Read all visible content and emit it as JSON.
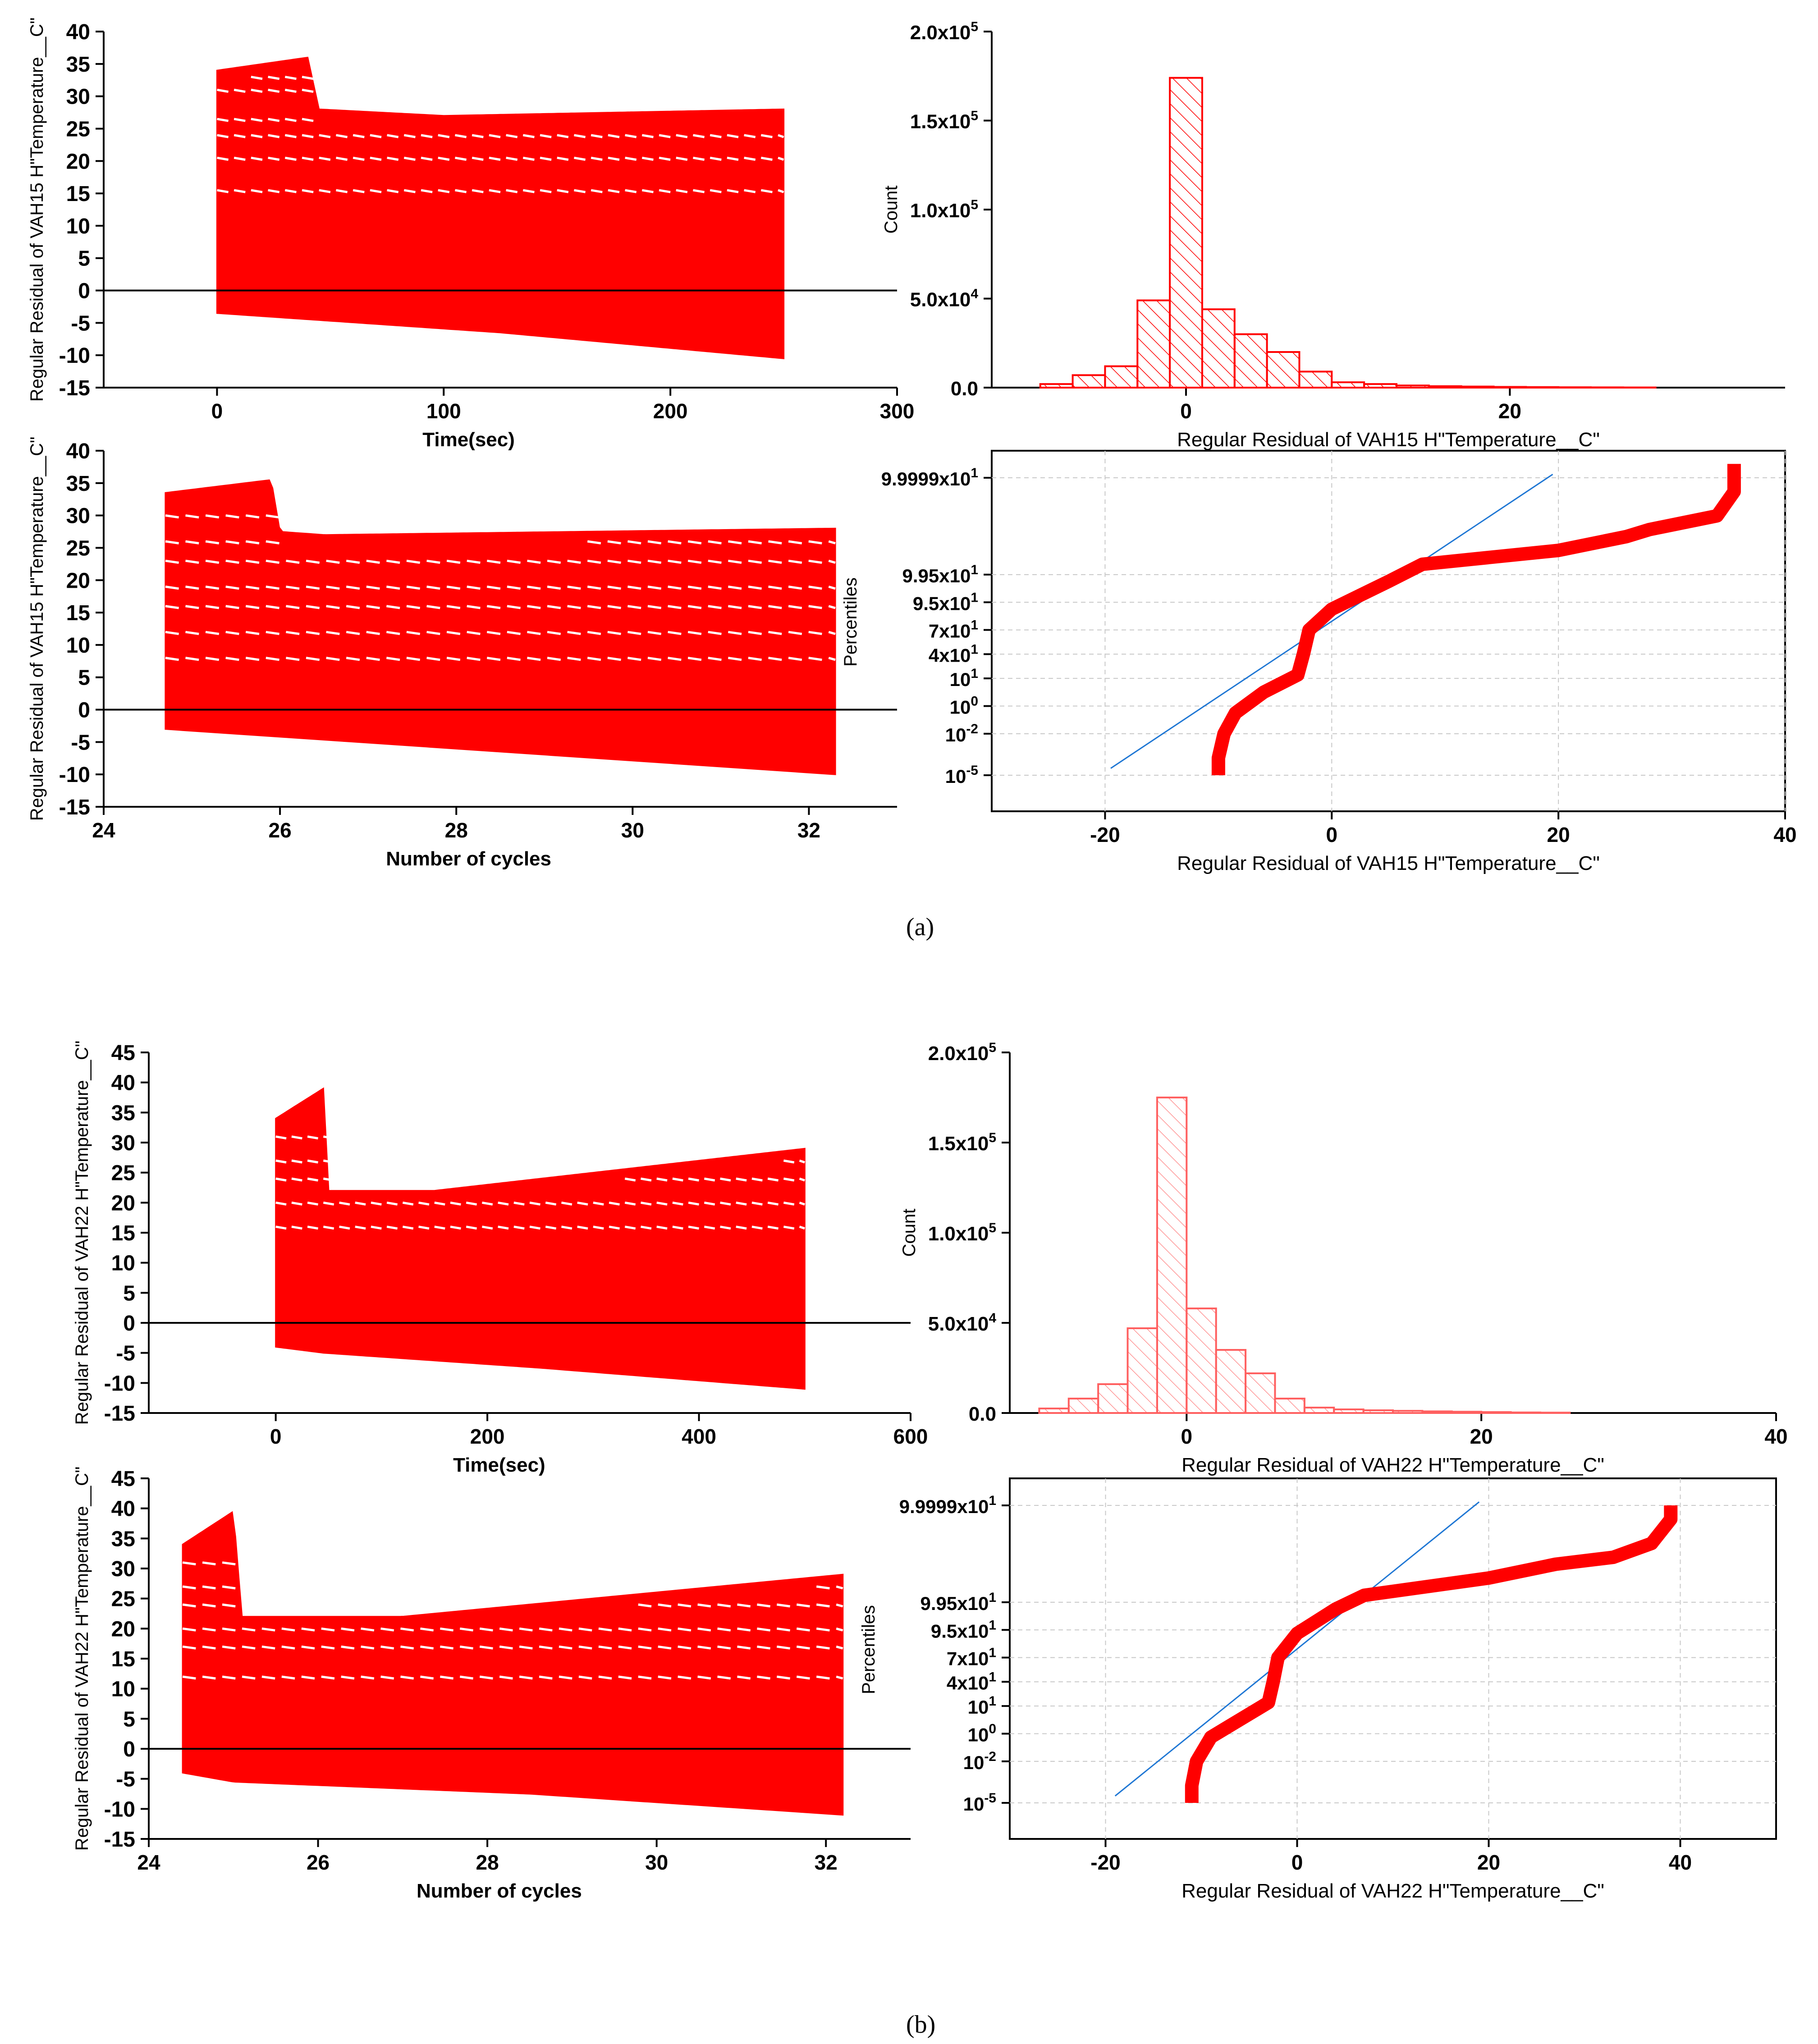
{
  "figure": {
    "caption_a": "(a)",
    "caption_b": "(b)"
  },
  "colors": {
    "red": "#ff0000",
    "fit_line": "#1f77d4",
    "grid": "#c8c8c8",
    "axis": "#000000"
  },
  "chart_data": [
    {
      "id": "a_time",
      "type": "area",
      "ylabel": "Regular Residual of VAH15 H\"Temperature__C\"",
      "xlabel": "Time(sec)",
      "xlim": [
        -50,
        300
      ],
      "ylim": [
        -15,
        40
      ],
      "xticks": [
        0,
        100,
        200,
        300
      ],
      "yticks": [
        -15,
        -10,
        -5,
        0,
        5,
        10,
        15,
        20,
        25,
        30,
        35,
        40
      ],
      "reference_y": 0,
      "x_range": [
        0,
        250
      ],
      "upper": [
        [
          0,
          34
        ],
        [
          40,
          36
        ],
        [
          45,
          28
        ],
        [
          100,
          27
        ],
        [
          250,
          28
        ]
      ],
      "lower": [
        [
          0,
          -3.5
        ],
        [
          125,
          -6.5
        ],
        [
          250,
          -10.5
        ]
      ],
      "bands": [
        33,
        31,
        26.5,
        24,
        20.5,
        15.5
      ]
    },
    {
      "id": "a_cycles",
      "type": "area",
      "ylabel": "Regular Residual of VAH15 H\"Temperature__C\"",
      "xlabel": "Number of cycles",
      "xlim": [
        24,
        33
      ],
      "ylim": [
        -15,
        40
      ],
      "xticks": [
        24,
        26,
        28,
        30,
        32
      ],
      "yticks": [
        -15,
        -10,
        -5,
        0,
        5,
        10,
        15,
        20,
        25,
        30,
        35,
        40
      ],
      "reference_y": 0,
      "x_range": [
        24.7,
        32.3
      ],
      "upper": [
        [
          24.7,
          33.5
        ],
        [
          25.9,
          35.5
        ],
        [
          26.0,
          27.5
        ],
        [
          26.5,
          27
        ],
        [
          32.3,
          28
        ]
      ],
      "lower": [
        [
          24.7,
          -3
        ],
        [
          28.5,
          -6.5
        ],
        [
          32.3,
          -10
        ]
      ],
      "bands": [
        30,
        26,
        23,
        19,
        16,
        12,
        8
      ]
    },
    {
      "id": "a_hist",
      "type": "bar",
      "xlabel": "Regular Residual of VAH15 H\"Temperature__C\"",
      "ylabel": "Count",
      "xlim": [
        -12,
        37
      ],
      "ylim": [
        0,
        200000
      ],
      "xticks": [
        0,
        20
      ],
      "yticks": [
        0,
        50000,
        100000,
        150000,
        200000
      ],
      "ytick_labels": [
        "0.0",
        "5.0x10^4",
        "1.0x10^5",
        "1.5x10^5",
        "2.0x10^5"
      ],
      "bin_width": 2,
      "bin_starts": [
        -9,
        -7,
        -5,
        -3,
        -1,
        1,
        3,
        5,
        7,
        9,
        11,
        13,
        15,
        17,
        19,
        21,
        23,
        25,
        27
      ],
      "values": [
        2000,
        7000,
        12000,
        49000,
        174000,
        44000,
        30000,
        20000,
        9000,
        3000,
        2000,
        1200,
        800,
        600,
        400,
        300,
        200,
        150,
        100
      ]
    },
    {
      "id": "a_prob",
      "type": "scatter",
      "xlabel": "Regular Residual of VAH15 H\"Temperature__C\"",
      "ylabel": "Percentiles",
      "xlim": [
        -30,
        40
      ],
      "xticks": [
        -20,
        0,
        20,
        40
      ],
      "ytick_labels": [
        "10^-5",
        "10^-2",
        "10^0",
        "10^1",
        "4x10^1",
        "7x10^1",
        "9.5x10^1",
        "9.95x10^1",
        "9.9999x10^1"
      ],
      "fit_line": [
        [
          -19.5,
          0.2
        ],
        [
          19.5,
          8.7
        ]
      ],
      "points": [
        [
          -10,
          0.0
        ],
        [
          -10,
          0.5
        ],
        [
          -9.5,
          1.2
        ],
        [
          -8.5,
          1.8
        ],
        [
          -6,
          2.4
        ],
        [
          -3,
          2.9
        ],
        [
          -2.5,
          3.5
        ],
        [
          -2,
          4.2
        ],
        [
          0,
          4.8
        ],
        [
          5,
          5.6
        ],
        [
          8,
          6.1
        ],
        [
          20,
          6.5
        ],
        [
          26,
          6.9
        ],
        [
          28,
          7.1
        ],
        [
          34,
          7.5
        ],
        [
          35.5,
          8.2
        ],
        [
          35.5,
          9.0
        ]
      ]
    },
    {
      "id": "b_time",
      "type": "area",
      "ylabel": "Regular Residual of VAH22 H\"Temperature__C\"",
      "xlabel": "Time(sec)",
      "xlim": [
        -120,
        600
      ],
      "ylim": [
        -15,
        45
      ],
      "xticks": [
        0,
        200,
        400,
        600
      ],
      "yticks": [
        -15,
        -10,
        -5,
        0,
        5,
        10,
        15,
        20,
        25,
        30,
        35,
        40,
        45
      ],
      "reference_y": 0,
      "x_range": [
        0,
        500
      ],
      "upper": [
        [
          0,
          34
        ],
        [
          45,
          39
        ],
        [
          50,
          22
        ],
        [
          150,
          22
        ],
        [
          500,
          29
        ]
      ],
      "lower": [
        [
          0,
          -4
        ],
        [
          45,
          -5
        ],
        [
          250,
          -7.5
        ],
        [
          500,
          -11
        ]
      ],
      "bands": [
        31,
        27,
        24,
        20,
        16
      ]
    },
    {
      "id": "b_cycles",
      "type": "area",
      "ylabel": "Regular Residual of VAH22 H\"Temperature__C\"",
      "xlabel": "Number of cycles",
      "xlim": [
        24,
        33
      ],
      "ylim": [
        -15,
        45
      ],
      "xticks": [
        24,
        26,
        28,
        30,
        32
      ],
      "yticks": [
        -15,
        -10,
        -5,
        0,
        5,
        10,
        15,
        20,
        25,
        30,
        35,
        40,
        45
      ],
      "reference_y": 0,
      "x_range": [
        24.4,
        32.2
      ],
      "upper": [
        [
          24.4,
          34
        ],
        [
          25.0,
          39.5
        ],
        [
          25.1,
          22
        ],
        [
          27.0,
          22
        ],
        [
          32.2,
          29
        ]
      ],
      "lower": [
        [
          24.4,
          -4
        ],
        [
          25.0,
          -5.5
        ],
        [
          28.5,
          -7.5
        ],
        [
          32.2,
          -11
        ]
      ],
      "bands": [
        31,
        27,
        24,
        20,
        17,
        12
      ]
    },
    {
      "id": "b_hist",
      "type": "bar",
      "xlabel": "Regular Residual of VAH22 H\"Temperature__C\"",
      "ylabel": "Count",
      "xlim": [
        -12,
        40
      ],
      "ylim": [
        0,
        200000
      ],
      "xticks": [
        0,
        20,
        40
      ],
      "yticks": [
        0,
        50000,
        100000,
        150000,
        200000
      ],
      "ytick_labels": [
        "0.0",
        "5.0x10^4",
        "1.0x10^5",
        "1.5x10^5",
        "2.0x10^5"
      ],
      "bin_width": 2,
      "bin_starts": [
        -10,
        -8,
        -6,
        -4,
        -2,
        0,
        2,
        4,
        6,
        8,
        10,
        12,
        14,
        16,
        18,
        20,
        22,
        24
      ],
      "values": [
        2500,
        8000,
        16000,
        47000,
        175000,
        58000,
        35000,
        22000,
        8000,
        3000,
        2000,
        1500,
        1200,
        900,
        700,
        500,
        300,
        200
      ]
    },
    {
      "id": "b_prob",
      "type": "scatter",
      "xlabel": "Regular Residual of VAH22 H\"Temperature__C\"",
      "ylabel": "Percentiles",
      "xlim": [
        -30,
        50
      ],
      "xticks": [
        -20,
        0,
        20,
        40
      ],
      "ytick_labels": [
        "10^-5",
        "10^-2",
        "10^0",
        "10^1",
        "4x10^1",
        "7x10^1",
        "9.5x10^1",
        "9.95x10^1",
        "9.9999x10^1"
      ],
      "fit_line": [
        [
          -19,
          0.2
        ],
        [
          19,
          8.7
        ]
      ],
      "points": [
        [
          -11,
          0.0
        ],
        [
          -11,
          0.5
        ],
        [
          -10.5,
          1.2
        ],
        [
          -9,
          1.9
        ],
        [
          -6,
          2.4
        ],
        [
          -3,
          2.9
        ],
        [
          -2.5,
          3.5
        ],
        [
          -2,
          4.2
        ],
        [
          0,
          4.9
        ],
        [
          4,
          5.6
        ],
        [
          7,
          6.0
        ],
        [
          20,
          6.5
        ],
        [
          27,
          6.9
        ],
        [
          33,
          7.1
        ],
        [
          37,
          7.5
        ],
        [
          39,
          8.2
        ],
        [
          39,
          8.6
        ]
      ]
    }
  ]
}
